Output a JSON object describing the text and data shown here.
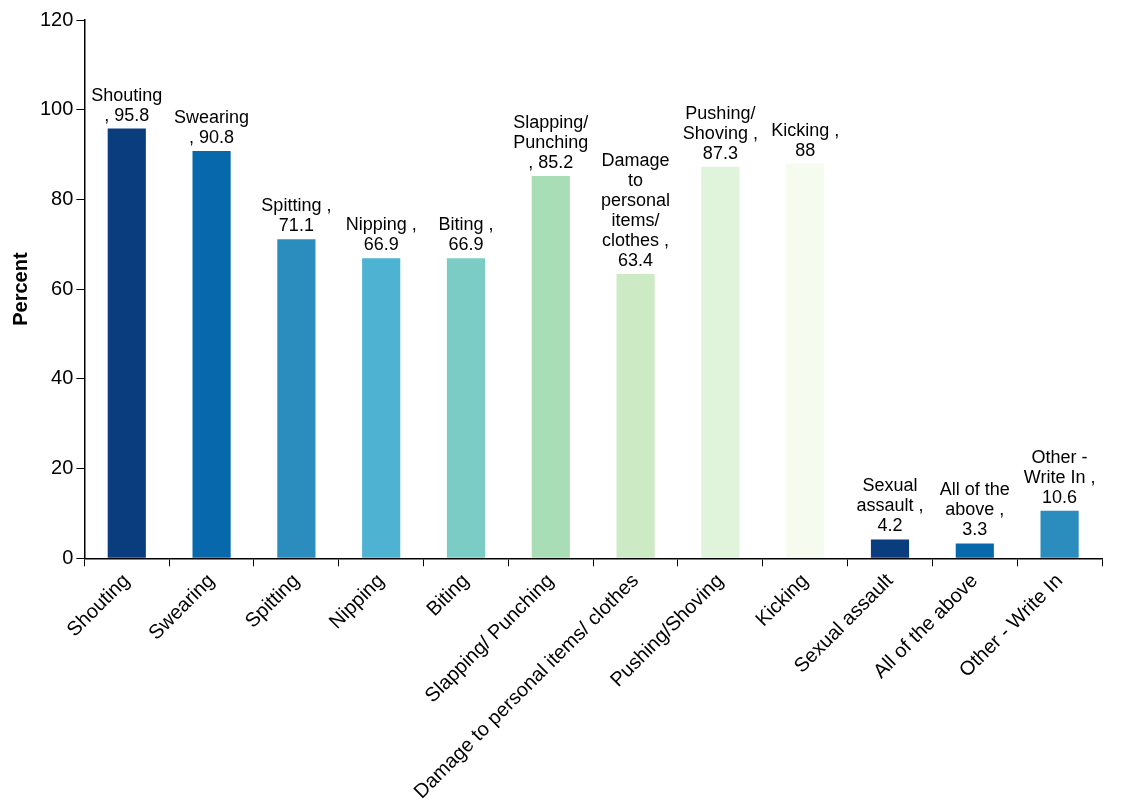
{
  "chart_data": {
    "type": "bar",
    "ylabel": "Percent",
    "categories": [
      "Shouting",
      "Swearing",
      "Spitting",
      "Nipping",
      "Biting",
      "Slapping/ Punching",
      "Damage to personal items/ clothes",
      "Pushing/Shoving",
      "Kicking",
      "Sexual assault",
      "All of the above",
      "Other - Write In"
    ],
    "values": [
      95.8,
      90.8,
      71.1,
      66.9,
      66.9,
      85.2,
      63.4,
      87.3,
      88,
      4.2,
      3.3,
      10.6
    ],
    "value_labels": [
      "Shouting , 95.8",
      "Swearing , 90.8",
      "Spitting , 71.1",
      "Nipping , 66.9",
      "Biting , 66.9",
      "Slapping/ Punching , 85.2",
      "Damage to personal items/ clothes , 63.4",
      "Pushing/Shoving , 87.3",
      "Kicking , 88",
      "Sexual assault , 4.2",
      "All of the above , 3.3",
      "Other - Write In , 10.6"
    ],
    "colors": [
      "#0a3d7e",
      "#0868ac",
      "#2b8cbe",
      "#4eb3d3",
      "#7bccc4",
      "#a8ddb5",
      "#ccebc5",
      "#e0f3db",
      "#f5fbee",
      "#0a3d7e",
      "#0868ac",
      "#2b8cbe"
    ],
    "ylim": [
      0,
      120
    ],
    "yticks": [
      0,
      20,
      40,
      60,
      80,
      100,
      120
    ],
    "grid": false,
    "legend": false
  }
}
